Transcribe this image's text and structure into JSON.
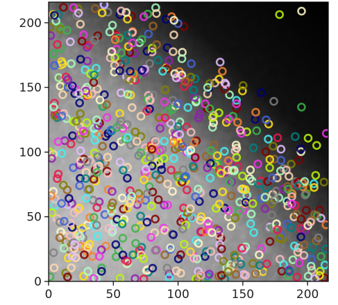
{
  "chart_data": {
    "type": "scatter",
    "title": "",
    "xlabel": "",
    "ylabel": "",
    "xlim": [
      0,
      216
    ],
    "ylim": [
      0,
      216
    ],
    "x_ticks": [
      "0",
      "50",
      "100",
      "150",
      "200"
    ],
    "y_ticks": [
      "0",
      "50",
      "100",
      "150",
      "200"
    ],
    "background": "grayscale microscopy image (bright lower-left, dark upper-right corner)",
    "marker": "hollow circle (ring)",
    "point_count": 800,
    "grid": false,
    "legend": "none",
    "points_note": "hundreds of multicolored detected-spot rings scattered over the whole image; individual coordinates not labeled",
    "colors": [
      "#e6194b",
      "#3cb44b",
      "#ffe119",
      "#4363d8",
      "#f58231",
      "#911eb4",
      "#46f0f0",
      "#f032e6",
      "#bcf60c",
      "#fabebe",
      "#008080",
      "#e6beff",
      "#9a6324",
      "#fffac8",
      "#800000",
      "#aaffc3",
      "#808000",
      "#ffd8b1",
      "#000075",
      "#808080"
    ]
  }
}
